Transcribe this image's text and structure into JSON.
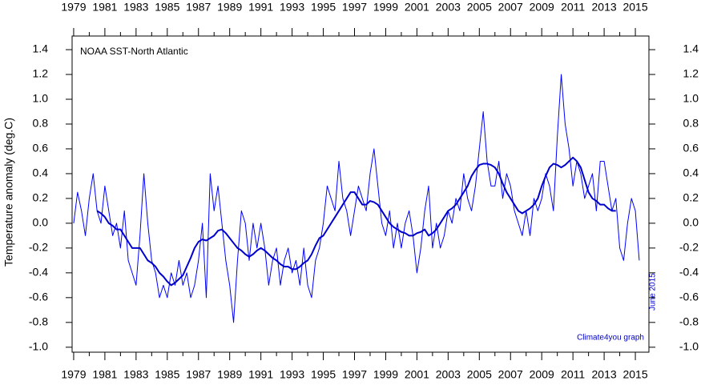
{
  "chart_data": {
    "type": "line",
    "title": "NOAA SST-North Atlantic",
    "ylabel": "Temperature anomaly (deg.C)",
    "annotations": [
      "June 2015",
      "Climate4you graph"
    ],
    "x": [
      1979,
      1979.25,
      1979.5,
      1979.75,
      1980,
      1980.25,
      1980.5,
      1980.75,
      1981,
      1981.25,
      1981.5,
      1981.75,
      1982,
      1982.25,
      1982.5,
      1982.75,
      1983,
      1983.25,
      1983.5,
      1983.75,
      1984,
      1984.25,
      1984.5,
      1984.75,
      1985,
      1985.25,
      1985.5,
      1985.75,
      1986,
      1986.25,
      1986.5,
      1986.75,
      1987,
      1987.25,
      1987.5,
      1987.75,
      1988,
      1988.25,
      1988.5,
      1988.75,
      1989,
      1989.25,
      1989.5,
      1989.75,
      1990,
      1990.25,
      1990.5,
      1990.75,
      1991,
      1991.25,
      1991.5,
      1991.75,
      1992,
      1992.25,
      1992.5,
      1992.75,
      1993,
      1993.25,
      1993.5,
      1993.75,
      1994,
      1994.25,
      1994.5,
      1994.75,
      1995,
      1995.25,
      1995.5,
      1995.75,
      1996,
      1996.25,
      1996.5,
      1996.75,
      1997,
      1997.25,
      1997.5,
      1997.75,
      1998,
      1998.25,
      1998.5,
      1998.75,
      1999,
      1999.25,
      1999.5,
      1999.75,
      2000,
      2000.25,
      2000.5,
      2000.75,
      2001,
      2001.25,
      2001.5,
      2001.75,
      2002,
      2002.25,
      2002.5,
      2002.75,
      2003,
      2003.25,
      2003.5,
      2003.75,
      2004,
      2004.25,
      2004.5,
      2004.75,
      2005,
      2005.25,
      2005.5,
      2005.75,
      2006,
      2006.25,
      2006.5,
      2006.75,
      2007,
      2007.25,
      2007.5,
      2007.75,
      2008,
      2008.25,
      2008.5,
      2008.75,
      2009,
      2009.25,
      2009.5,
      2009.75,
      2010,
      2010.25,
      2010.5,
      2010.75,
      2011,
      2011.25,
      2011.5,
      2011.75,
      2012,
      2012.25,
      2012.5,
      2012.75,
      2013,
      2013.25,
      2013.5,
      2013.75,
      2014,
      2014.25,
      2014.5,
      2014.75,
      2015,
      2015.25
    ],
    "series": [
      {
        "color": "#0000ff",
        "width": 1,
        "values": [
          0.0,
          0.25,
          0.1,
          -0.1,
          0.2,
          0.4,
          0.1,
          0.0,
          0.3,
          0.1,
          -0.1,
          0.0,
          -0.2,
          0.1,
          -0.3,
          -0.4,
          -0.5,
          -0.1,
          0.4,
          0.0,
          -0.3,
          -0.4,
          -0.6,
          -0.5,
          -0.6,
          -0.4,
          -0.5,
          -0.3,
          -0.5,
          -0.4,
          -0.6,
          -0.5,
          -0.3,
          0.0,
          -0.6,
          0.4,
          0.1,
          0.3,
          0.0,
          -0.3,
          -0.5,
          -0.8,
          -0.3,
          0.1,
          0.0,
          -0.3,
          0.0,
          -0.2,
          0.0,
          -0.2,
          -0.5,
          -0.3,
          -0.2,
          -0.5,
          -0.3,
          -0.2,
          -0.4,
          -0.3,
          -0.5,
          -0.2,
          -0.5,
          -0.6,
          -0.3,
          -0.2,
          0.0,
          0.3,
          0.2,
          0.1,
          0.5,
          0.2,
          0.1,
          -0.1,
          0.1,
          0.3,
          0.2,
          0.1,
          0.4,
          0.6,
          0.3,
          0.0,
          -0.1,
          0.1,
          -0.2,
          0.0,
          -0.2,
          0.0,
          0.1,
          -0.1,
          -0.4,
          -0.2,
          0.1,
          0.3,
          -0.2,
          0.0,
          -0.2,
          -0.1,
          0.1,
          0.0,
          0.2,
          0.1,
          0.4,
          0.2,
          0.1,
          0.3,
          0.6,
          0.9,
          0.5,
          0.3,
          0.3,
          0.5,
          0.2,
          0.4,
          0.3,
          0.1,
          0.0,
          -0.1,
          0.1,
          -0.1,
          0.2,
          0.1,
          0.2,
          0.4,
          0.3,
          0.1,
          0.7,
          1.2,
          0.8,
          0.6,
          0.3,
          0.5,
          0.4,
          0.2,
          0.3,
          0.4,
          0.1,
          0.5,
          0.5,
          0.3,
          0.1,
          0.2,
          -0.2,
          -0.3,
          0.0,
          0.2,
          0.1,
          -0.3
        ]
      },
      {
        "color": "#0000cc",
        "width": 2,
        "values": [
          null,
          null,
          null,
          null,
          null,
          null,
          0.1,
          0.08,
          0.05,
          0.0,
          -0.02,
          -0.05,
          -0.05,
          -0.1,
          -0.15,
          -0.2,
          -0.2,
          -0.2,
          -0.25,
          -0.3,
          -0.32,
          -0.35,
          -0.4,
          -0.43,
          -0.47,
          -0.5,
          -0.48,
          -0.45,
          -0.42,
          -0.35,
          -0.28,
          -0.2,
          -0.15,
          -0.13,
          -0.14,
          -0.12,
          -0.1,
          -0.06,
          -0.05,
          -0.08,
          -0.12,
          -0.16,
          -0.2,
          -0.22,
          -0.25,
          -0.27,
          -0.25,
          -0.22,
          -0.2,
          -0.22,
          -0.25,
          -0.28,
          -0.3,
          -0.33,
          -0.35,
          -0.35,
          -0.37,
          -0.37,
          -0.35,
          -0.32,
          -0.3,
          -0.25,
          -0.18,
          -0.12,
          -0.1,
          -0.05,
          0.0,
          0.05,
          0.1,
          0.15,
          0.2,
          0.25,
          0.25,
          0.2,
          0.15,
          0.15,
          0.18,
          0.17,
          0.15,
          0.1,
          0.05,
          0.0,
          -0.03,
          -0.05,
          -0.07,
          -0.08,
          -0.1,
          -0.1,
          -0.08,
          -0.07,
          -0.05,
          -0.1,
          -0.08,
          -0.05,
          0.0,
          0.05,
          0.1,
          0.12,
          0.15,
          0.2,
          0.25,
          0.3,
          0.38,
          0.43,
          0.47,
          0.48,
          0.48,
          0.47,
          0.45,
          0.4,
          0.32,
          0.25,
          0.2,
          0.15,
          0.1,
          0.08,
          0.1,
          0.12,
          0.15,
          0.2,
          0.3,
          0.38,
          0.45,
          0.48,
          0.47,
          0.45,
          0.47,
          0.5,
          0.53,
          0.5,
          0.45,
          0.35,
          0.25,
          0.2,
          0.18,
          0.15,
          0.15,
          0.12,
          0.1,
          0.1,
          null,
          null,
          null,
          null,
          null,
          null
        ]
      }
    ],
    "xlim": [
      1978.9,
      2015.87
    ],
    "xticks": [
      1979,
      1981,
      1983,
      1985,
      1987,
      1989,
      1991,
      1993,
      1995,
      1997,
      1999,
      2001,
      2003,
      2005,
      2007,
      2009,
      2011,
      2013,
      2015
    ],
    "ylim": [
      -1.04,
      1.51
    ],
    "yticks": [
      {
        "value": -1,
        "label": "-1.0"
      },
      -0.8,
      -0.6,
      -0.4,
      -0.2,
      {
        "value": 0,
        "label": "0.0"
      },
      0.2,
      0.4,
      0.6,
      0.8,
      {
        "value": 1,
        "label": "1.0"
      },
      1.2,
      1.4
    ]
  }
}
